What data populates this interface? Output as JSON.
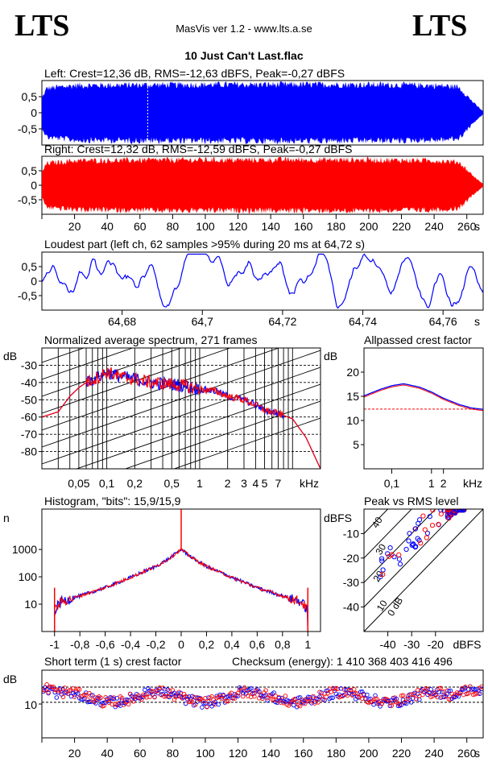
{
  "header": {
    "logo_left": "LTS",
    "logo_right": "LTS",
    "app": "MasVis ver 1.2 - www.lts.a.se",
    "file": "10 Just Can't Last.flac"
  },
  "colors": {
    "left": "#0000ff",
    "right": "#ff0000"
  },
  "left_waveform": {
    "label": "Left: Crest=12,36 dB, RMS=-12,63 dBFS, Peak=-0,27 dBFS",
    "yticks": [
      "0,5",
      "0",
      "-0,5"
    ],
    "marker_s": 64.72
  },
  "right_waveform": {
    "label": "Right: Crest=12,32 dB, RMS=-12,59 dBFS, Peak=-0,27 dBFS",
    "yticks": [
      "0,5",
      "0",
      "-0,5"
    ],
    "xticks": [
      "20",
      "40",
      "60",
      "80",
      "100",
      "120",
      "140",
      "160",
      "180",
      "200",
      "220",
      "240",
      "260"
    ],
    "xunit": "s",
    "duration_s": 270
  },
  "loudest": {
    "label": "Loudest part (left  ch, 62 samples >95% during 20 ms at 64,72 s)",
    "yticks": [
      "0,5",
      "0",
      "-0,5"
    ],
    "xticks": [
      "64,68",
      "64,7",
      "64,72",
      "64,74",
      "64,76"
    ],
    "xunit": "s"
  },
  "spectrum": {
    "label": "Normalized average spectrum, 271 frames",
    "ylabel": "dB",
    "yticks": [
      "-30",
      "-40",
      "-50",
      "-60",
      "-70",
      "-80"
    ],
    "xticks": [
      "0,05",
      "0,1",
      "0,2",
      "0,5",
      "1",
      "2",
      "3",
      "4",
      "5",
      "7"
    ],
    "xunit": "kHz"
  },
  "allpass": {
    "label": "Allpassed crest factor",
    "ylabel": "dB",
    "yticks": [
      "20",
      "15",
      "10",
      "5"
    ],
    "xticks": [
      "0,1",
      "1",
      "2"
    ],
    "xunit": "kHz"
  },
  "histogram": {
    "label": "Histogram, \"bits\": 15,9/15,9",
    "ylabel": "n",
    "yticks": [
      "1000",
      "100",
      "10"
    ],
    "xticks": [
      "-1",
      "-0,8",
      "-0,6",
      "-0,4",
      "-0,2",
      "0",
      "0,2",
      "0,4",
      "0,6",
      "0,8",
      "1"
    ]
  },
  "peak_rms": {
    "label": "Peak vs RMS level",
    "ylabel": "dBFS",
    "yticks": [
      "-10",
      "-20",
      "-30",
      "-40"
    ],
    "xticks": [
      "-40",
      "-30",
      "-20"
    ],
    "xunit": "dBFS",
    "diag_labels": [
      "40",
      "30",
      "20",
      "10",
      "0 dB"
    ]
  },
  "short_crest": {
    "label": "Short term (1 s) crest factor",
    "checksum": "Checksum (energy):  1 410 368 403 416 496",
    "ylabel": "dB",
    "yticks": [
      "10"
    ],
    "xticks": [
      "20",
      "40",
      "60",
      "80",
      "100",
      "120",
      "140",
      "160",
      "180",
      "200",
      "220",
      "240",
      "260"
    ],
    "xunit": "s"
  },
  "chart_data": [
    {
      "type": "area",
      "name": "left waveform",
      "ylim": [
        -1,
        1
      ],
      "xlim": [
        0,
        270
      ],
      "envelope_peak": [
        [
          0,
          0.5
        ],
        [
          3,
          0.85
        ],
        [
          20,
          0.95
        ],
        [
          60,
          0.97
        ],
        [
          120,
          0.98
        ],
        [
          200,
          0.98
        ],
        [
          240,
          0.95
        ],
        [
          255,
          0.9
        ],
        [
          265,
          0.3
        ],
        [
          270,
          0.05
        ]
      ]
    },
    {
      "type": "area",
      "name": "right waveform",
      "ylim": [
        -1,
        1
      ],
      "xlim": [
        0,
        270
      ],
      "envelope_peak": [
        [
          0,
          0.5
        ],
        [
          3,
          0.85
        ],
        [
          20,
          0.95
        ],
        [
          60,
          0.97
        ],
        [
          120,
          0.98
        ],
        [
          200,
          0.98
        ],
        [
          240,
          0.95
        ],
        [
          255,
          0.9
        ],
        [
          265,
          0.3
        ],
        [
          270,
          0.05
        ]
      ]
    },
    {
      "type": "line",
      "name": "loudest part",
      "xlim": [
        64.66,
        64.77
      ],
      "ylim": [
        -1,
        1
      ]
    },
    {
      "type": "line",
      "name": "spectrum",
      "xlim_khz": [
        0.02,
        20
      ],
      "ylim": [
        -90,
        -20
      ],
      "x": [
        0.02,
        0.03,
        0.04,
        0.05,
        0.06,
        0.08,
        0.1,
        0.15,
        0.2,
        0.3,
        0.5,
        0.7,
        1,
        1.5,
        2,
        3,
        4,
        5,
        7,
        10,
        14,
        20
      ],
      "y": [
        -60,
        -57,
        -48,
        -43,
        -40,
        -37,
        -34,
        -37,
        -38,
        -40,
        -41,
        -42,
        -44,
        -45,
        -48,
        -50,
        -53,
        -56,
        -58,
        -61,
        -72,
        -90
      ]
    },
    {
      "type": "line",
      "name": "allpassed crest factor",
      "xlim_khz": [
        0.02,
        20
      ],
      "ylim": [
        0,
        25
      ],
      "x": [
        0.02,
        0.05,
        0.1,
        0.2,
        0.5,
        1,
        2,
        5,
        10,
        20
      ],
      "y": [
        15,
        16.3,
        17.1,
        17.5,
        16.8,
        15.8,
        14.5,
        13.2,
        12.5,
        12.2
      ],
      "reference_y": 12.36
    },
    {
      "type": "line",
      "name": "histogram",
      "xlim": [
        -1.1,
        1.1
      ],
      "ylim_log": [
        1,
        30000
      ],
      "x": [
        -1,
        -0.95,
        -0.8,
        -0.6,
        -0.4,
        -0.2,
        -0.1,
        0,
        0.1,
        0.2,
        0.4,
        0.6,
        0.8,
        0.95,
        1
      ],
      "y": [
        6,
        12,
        20,
        40,
        95,
        240,
        450,
        1000,
        450,
        240,
        95,
        40,
        20,
        12,
        6
      ]
    },
    {
      "type": "scatter",
      "name": "peak vs rms",
      "xlim": [
        -50,
        0
      ],
      "ylim": [
        -50,
        0
      ]
    },
    {
      "type": "scatter",
      "name": "short term crest factor",
      "xlim": [
        0,
        270
      ],
      "ylim": [
        0,
        20
      ],
      "reference_lines": [
        10.5,
        15
      ]
    }
  ]
}
